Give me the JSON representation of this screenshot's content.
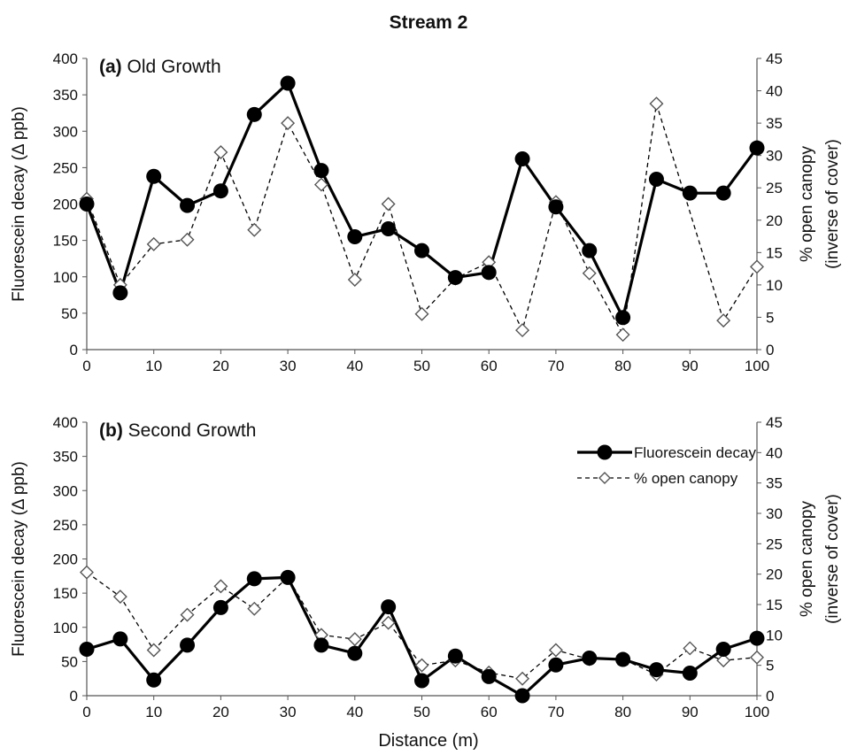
{
  "figure": {
    "title": "Stream 2",
    "xlabel": "Distance (m)"
  },
  "colors": {
    "fluorescein": "#000000",
    "canopy": "#000000",
    "marker_fill": "#ffffff",
    "axis": "#555555"
  },
  "chart_data": [
    {
      "type": "line",
      "panel_letter": "(a)",
      "panel_title": "Old Growth",
      "ylabel": "Fluorescein decay (Δ ppb)",
      "y2label": "% open canopy\n(inverse of cover)",
      "ylim": [
        0,
        400
      ],
      "y2lim": [
        0,
        45
      ],
      "xlim": [
        0,
        100
      ],
      "x_ticks": [
        0,
        10,
        20,
        30,
        40,
        50,
        60,
        70,
        80,
        90,
        100
      ],
      "y_ticks": [
        0,
        50,
        100,
        150,
        200,
        250,
        300,
        350,
        400
      ],
      "y2_ticks": [
        0,
        5,
        10,
        15,
        20,
        25,
        30,
        35,
        40,
        45
      ],
      "grid": false,
      "legend": null,
      "x": [
        0,
        5,
        10,
        15,
        20,
        25,
        30,
        35,
        40,
        45,
        50,
        55,
        60,
        65,
        70,
        75,
        80,
        85,
        90,
        95,
        100
      ],
      "series": [
        {
          "name": "Fluorescein decay",
          "axis": "left",
          "style": "solid-circle",
          "values": [
            200,
            78,
            238,
            198,
            218,
            323,
            366,
            246,
            155,
            166,
            136,
            99,
            106,
            262,
            196,
            136,
            44,
            234,
            215,
            215,
            277
          ]
        },
        {
          "name": "% open canopy",
          "axis": "right",
          "style": "dashed-diamond",
          "values": [
            23.3,
            10.0,
            16.3,
            17.0,
            30.5,
            18.5,
            35.0,
            25.5,
            10.8,
            22.5,
            5.5,
            11.0,
            13.5,
            3.0,
            22.8,
            11.8,
            2.3,
            38.0,
            null,
            4.5,
            12.8
          ]
        }
      ]
    },
    {
      "type": "line",
      "panel_letter": "(b)",
      "panel_title": "Second Growth",
      "ylabel": "Fluorescein decay (Δ ppb)",
      "y2label": "% open canopy\n(inverse of cover)",
      "ylim": [
        0,
        400
      ],
      "y2lim": [
        0,
        45
      ],
      "xlim": [
        0,
        100
      ],
      "x_ticks": [
        0,
        10,
        20,
        30,
        40,
        50,
        60,
        70,
        80,
        90,
        100
      ],
      "y_ticks": [
        0,
        50,
        100,
        150,
        200,
        250,
        300,
        350,
        400
      ],
      "y2_ticks": [
        0,
        5,
        10,
        15,
        20,
        25,
        30,
        35,
        40,
        45
      ],
      "grid": false,
      "legend": "top-right",
      "x": [
        0,
        5,
        10,
        15,
        20,
        25,
        30,
        35,
        40,
        45,
        50,
        55,
        60,
        65,
        70,
        75,
        80,
        85,
        90,
        95,
        100
      ],
      "series": [
        {
          "name": "Fluorescein decay",
          "axis": "left",
          "style": "solid-circle",
          "values": [
            68,
            83,
            23,
            74,
            129,
            171,
            173,
            74,
            62,
            130,
            22,
            58,
            28,
            0,
            45,
            55,
            53,
            38,
            33,
            68,
            84
          ]
        },
        {
          "name": "% open canopy",
          "axis": "right",
          "style": "dashed-diamond",
          "values": [
            20.3,
            16.3,
            7.5,
            13.3,
            18.0,
            14.3,
            19.5,
            10.0,
            9.3,
            12.0,
            5.0,
            5.8,
            3.8,
            2.8,
            7.5,
            6.0,
            6.0,
            3.5,
            7.8,
            5.8,
            6.3
          ]
        }
      ]
    }
  ]
}
